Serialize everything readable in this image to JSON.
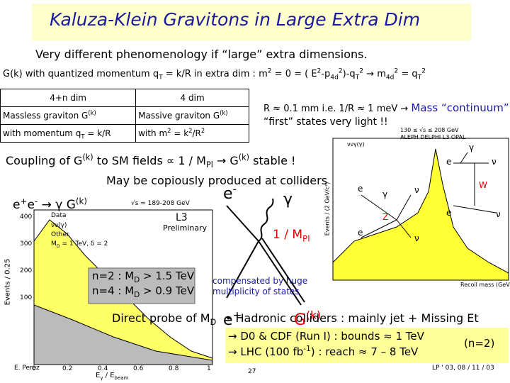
{
  "title": "Kaluza-Klein Gravitons in Large Extra Dim",
  "intro": "Very different phenomenology if “large” extra dimensions.",
  "momentum_line": [
    "G(k) with quantized momentum q",
    "T",
    " = k/R in extra dim :  ",
    "m",
    "2",
    " = 0 = ( E",
    "2",
    "-p",
    "4d",
    "2",
    ")-q",
    "T",
    "2",
    "  →  m",
    "4d",
    "2",
    " = q",
    "T",
    "2"
  ],
  "table": {
    "headers": [
      "4+n dim",
      "4 dim"
    ],
    "rows": [
      [
        [
          "Massless graviton G",
          "(k)"
        ],
        [
          "Massive graviton G",
          "(k)"
        ]
      ],
      [
        [
          "with momentum q",
          "T",
          " = k/R"
        ],
        [
          "with m",
          "2",
          " = k",
          "2",
          "/R",
          "2"
        ]
      ]
    ]
  },
  "scale_note": [
    "R ≈ 0.1 mm  i.e. 1/R ≈ 1 meV → ",
    "Mass “continuum”,",
    "“first” states very light !!"
  ],
  "coupling": [
    "Coupling of G",
    "(k)",
    " to SM fields ∝ 1 / M",
    "Pl",
    " → G",
    "(k)",
    " stable !"
  ],
  "colliders": "May be copiously produced at colliders",
  "process": [
    "e",
    "+",
    "e",
    "-",
    " → γ G",
    "(k)"
  ],
  "diagram": {
    "e_minus": [
      "e",
      "-"
    ],
    "photon": "γ",
    "e_plus": [
      "e",
      "+"
    ],
    "graviton": [
      "G",
      "(k)"
    ],
    "coupling": [
      "1 / M",
      "Pl"
    ]
  },
  "l3_plot": {
    "energy": "√s = 189-208 GeV",
    "experiment": "L3",
    "status": "Preliminary",
    "legend": [
      [
        "Data"
      ],
      [
        "νν(γ)"
      ],
      [
        "Other"
      ],
      [
        "M",
        "D",
        " = 1 TeV, δ = 2"
      ]
    ],
    "y_label": "Events / 0.25",
    "x_label": [
      "E",
      "γ",
      " / E",
      "beam"
    ],
    "y_ticks": [
      "400",
      "300",
      "200",
      "100"
    ],
    "x_ticks": [
      "0",
      "0.2",
      "0.4",
      "0.6",
      "0.8",
      "1"
    ]
  },
  "limits_box": [
    [
      "n=2 : M",
      "D",
      " > 1.5 TeV"
    ],
    [
      "n=4 : M",
      "D",
      " > 0.9 TeV"
    ]
  ],
  "probe": [
    "Direct probe of M",
    "D"
  ],
  "compensation": [
    "compensated by huge",
    "multiplicity of states"
  ],
  "lep_plot": {
    "energy": "130 ≤ √s ≤ 208 GeV",
    "experiments": "ALEPH DELPHI L3 OPAL",
    "legend": "ννγ(γ)",
    "y_label": "Events / (2 GeV/c²)",
    "x_label": "Recoil mass (GeV)",
    "diagram_labels": [
      "e",
      "γ",
      "ν",
      "W",
      "e",
      "ν",
      "e",
      "γ",
      "ν",
      "Z",
      "e",
      "ν"
    ]
  },
  "hadronic": "• Hadronic colliders : mainly jet + Missing Et",
  "hadron_box": {
    "lines": [
      [
        "→ D0 & CDF (Run I) : bounds ≈ 1 TeV"
      ],
      [
        "→ LHC (100 fb",
        "-1",
        ") : reach ≈ 7 – 8 TeV"
      ]
    ],
    "note": "(n=2)"
  },
  "footer": {
    "author": "E. Perez",
    "page": "27",
    "event": "LP ' 03, 08 / 11 / 03"
  }
}
